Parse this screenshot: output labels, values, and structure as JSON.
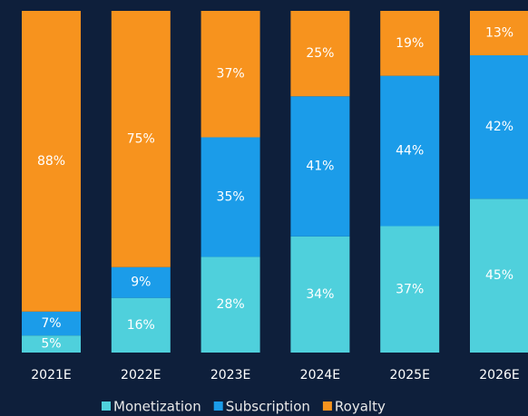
{
  "chart_data": {
    "type": "stacked_bar",
    "categories": [
      "2021E",
      "2022E",
      "2023E",
      "2024E",
      "2025E",
      "2026E"
    ],
    "series": [
      {
        "name": "Monetization",
        "color": "#4fd0dc",
        "values": [
          5,
          16,
          28,
          34,
          37,
          45
        ],
        "value_labels": [
          "5%",
          "16%",
          "28%",
          "34%",
          "37%",
          "45%"
        ]
      },
      {
        "name": "Subscription",
        "color": "#1b9ce9",
        "values": [
          7,
          9,
          35,
          41,
          44,
          42
        ],
        "value_labels": [
          "7%",
          "9%",
          "35%",
          "41%",
          "44%",
          "42%"
        ]
      },
      {
        "name": "Royalty",
        "color": "#f7931e",
        "values": [
          88,
          75,
          37,
          25,
          19,
          13
        ],
        "value_labels": [
          "88%",
          "75%",
          "37%",
          "25%",
          "19%",
          "13%"
        ]
      }
    ]
  }
}
